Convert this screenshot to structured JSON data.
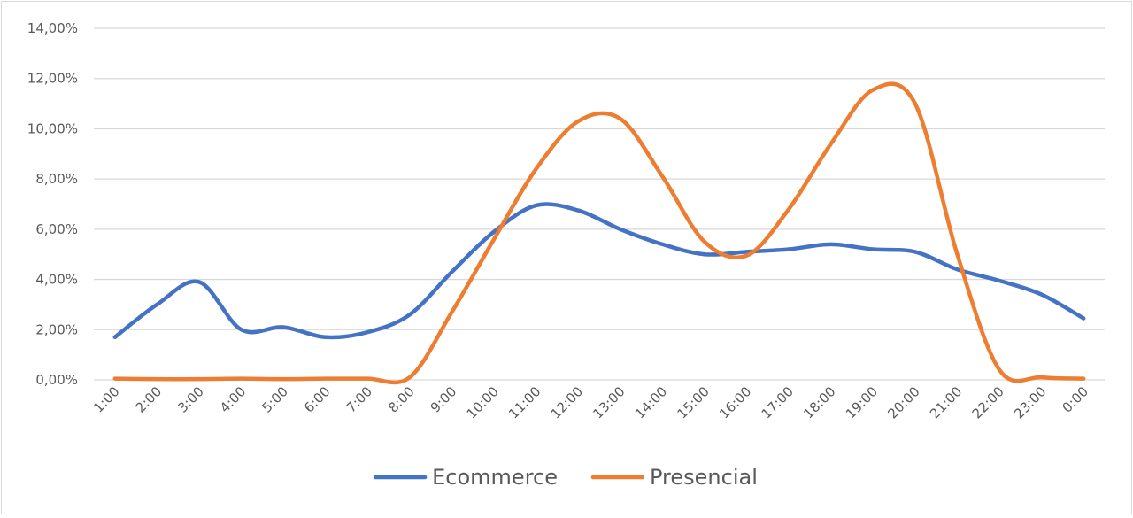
{
  "chart_data": {
    "type": "line",
    "title": "",
    "xlabel": "",
    "ylabel": "",
    "ylim": [
      0,
      14
    ],
    "y_ticks": [
      "0,00%",
      "2,00%",
      "4,00%",
      "6,00%",
      "8,00%",
      "10,00%",
      "12,00%",
      "14,00%"
    ],
    "grid": true,
    "legend_position": "bottom",
    "categories": [
      "1:00",
      "2:00",
      "3:00",
      "4:00",
      "5:00",
      "6:00",
      "7:00",
      "8:00",
      "9:00",
      "10:00",
      "11:00",
      "12:00",
      "13:00",
      "14:00",
      "15:00",
      "16:00",
      "17:00",
      "18:00",
      "19:00",
      "20:00",
      "21:00",
      "22:00",
      "23:00",
      "0:00"
    ],
    "series": [
      {
        "name": "Ecommerce",
        "color": "#4472c4",
        "values": [
          1.7,
          3.0,
          3.9,
          2.0,
          2.1,
          1.7,
          1.9,
          2.6,
          4.3,
          5.9,
          6.95,
          6.75,
          6.0,
          5.4,
          5.0,
          5.1,
          5.2,
          5.4,
          5.2,
          5.1,
          4.4,
          3.95,
          3.4,
          2.45
        ]
      },
      {
        "name": "Presencial",
        "color": "#ed7d31",
        "values": [
          0.05,
          0.03,
          0.03,
          0.05,
          0.03,
          0.05,
          0.05,
          0.1,
          2.7,
          5.6,
          8.4,
          10.3,
          10.4,
          8.1,
          5.5,
          4.95,
          6.8,
          9.4,
          11.55,
          11.0,
          5.0,
          0.4,
          0.1,
          0.05
        ]
      }
    ]
  }
}
